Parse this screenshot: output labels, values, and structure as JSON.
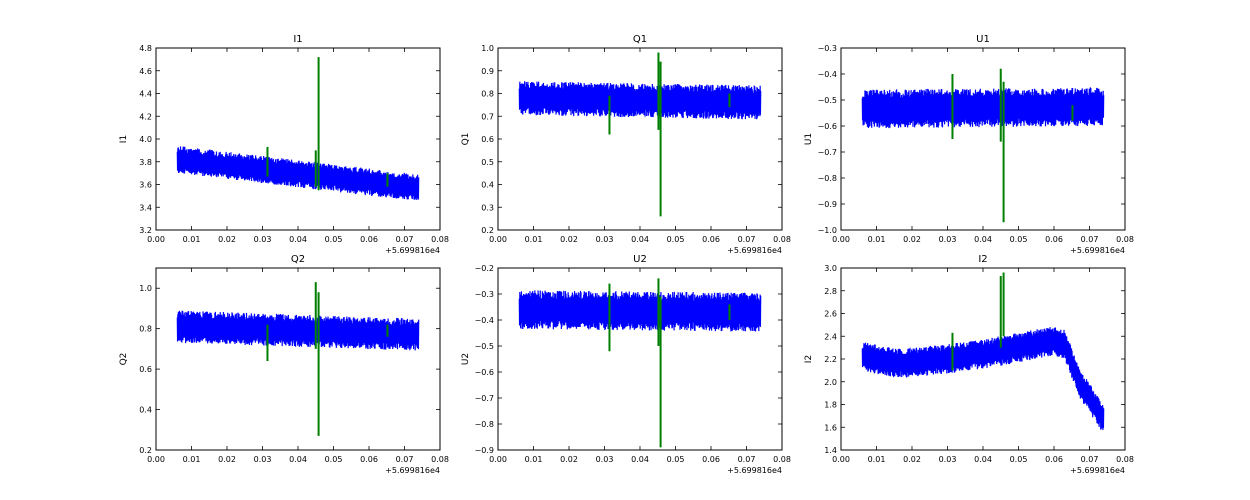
{
  "chart_data": [
    {
      "type": "line",
      "title": "I1",
      "ylabel": "I1",
      "xlim": [
        0.0,
        0.08
      ],
      "ylim": [
        3.2,
        4.8
      ],
      "xticks": [
        "0.00",
        "0.01",
        "0.02",
        "0.03",
        "0.04",
        "0.05",
        "0.06",
        "0.07",
        "0.08"
      ],
      "yticks": [
        "3.2",
        "3.4",
        "3.6",
        "3.8",
        "4.0",
        "4.2",
        "4.4",
        "4.6",
        "4.8"
      ],
      "x_offset_label": "+5.699816e4",
      "grid": false,
      "series": [
        {
          "color": "#0000ff",
          "x_range": [
            0.006,
            0.074
          ],
          "trend": [
            [
              0.006,
              3.82
            ],
            [
              0.074,
              3.57
            ]
          ],
          "band": 0.12
        },
        {
          "color": "#007f00",
          "spikes": [
            [
              0.0314,
              3.67,
              3.93
            ],
            [
              0.045,
              3.58,
              3.9
            ],
            [
              0.0458,
              3.55,
              4.72
            ],
            [
              0.0652,
              3.58,
              3.7
            ]
          ]
        }
      ]
    },
    {
      "type": "line",
      "title": "Q1",
      "ylabel": "Q1",
      "xlim": [
        0.0,
        0.08
      ],
      "ylim": [
        0.2,
        1.0
      ],
      "xticks": [
        "0.00",
        "0.01",
        "0.02",
        "0.03",
        "0.04",
        "0.05",
        "0.06",
        "0.07",
        "0.08"
      ],
      "yticks": [
        "0.2",
        "0.3",
        "0.4",
        "0.5",
        "0.6",
        "0.7",
        "0.8",
        "0.9",
        "1.0"
      ],
      "x_offset_label": "+5.699816e4",
      "grid": false,
      "series": [
        {
          "color": "#0000ff",
          "x_range": [
            0.006,
            0.074
          ],
          "trend": [
            [
              0.006,
              0.78
            ],
            [
              0.074,
              0.76
            ]
          ],
          "band": 0.075
        },
        {
          "color": "#007f00",
          "spikes": [
            [
              0.0314,
              0.62,
              0.79
            ],
            [
              0.0452,
              0.64,
              0.98
            ],
            [
              0.0458,
              0.26,
              0.94
            ],
            [
              0.0652,
              0.74,
              0.8
            ]
          ]
        }
      ]
    },
    {
      "type": "line",
      "title": "U1",
      "ylabel": "U1",
      "xlim": [
        0.0,
        0.08
      ],
      "ylim": [
        -1.0,
        -0.3
      ],
      "xticks": [
        "0.00",
        "0.01",
        "0.02",
        "0.03",
        "0.04",
        "0.05",
        "0.06",
        "0.07",
        "0.08"
      ],
      "yticks": [
        "−1.0",
        "−0.9",
        "−0.8",
        "−0.7",
        "−0.6",
        "−0.5",
        "−0.4",
        "−0.3"
      ],
      "x_offset_label": "+5.699816e4",
      "grid": false,
      "series": [
        {
          "color": "#0000ff",
          "x_range": [
            0.006,
            0.074
          ],
          "trend": [
            [
              0.006,
              -0.535
            ],
            [
              0.074,
              -0.525
            ]
          ],
          "band": 0.075
        },
        {
          "color": "#007f00",
          "spikes": [
            [
              0.0314,
              -0.65,
              -0.4
            ],
            [
              0.045,
              -0.66,
              -0.38
            ],
            [
              0.0458,
              -0.97,
              -0.43
            ],
            [
              0.0652,
              -0.58,
              -0.52
            ]
          ]
        }
      ]
    },
    {
      "type": "line",
      "title": "Q2",
      "ylabel": "Q2",
      "xlim": [
        0.0,
        0.08
      ],
      "ylim": [
        0.2,
        1.1
      ],
      "xticks": [
        "0.00",
        "0.01",
        "0.02",
        "0.03",
        "0.04",
        "0.05",
        "0.06",
        "0.07",
        "0.08"
      ],
      "yticks": [
        "0.2",
        "0.4",
        "0.6",
        "0.8",
        "1.0"
      ],
      "x_offset_label": "+5.699816e4",
      "grid": false,
      "series": [
        {
          "color": "#0000ff",
          "x_range": [
            0.006,
            0.074
          ],
          "trend": [
            [
              0.006,
              0.81
            ],
            [
              0.074,
              0.77
            ]
          ],
          "band": 0.08
        },
        {
          "color": "#007f00",
          "spikes": [
            [
              0.0314,
              0.64,
              0.82
            ],
            [
              0.045,
              0.7,
              1.03
            ],
            [
              0.0458,
              0.27,
              0.98
            ],
            [
              0.0652,
              0.76,
              0.82
            ]
          ]
        }
      ]
    },
    {
      "type": "line",
      "title": "U2",
      "ylabel": "U2",
      "xlim": [
        0.0,
        0.08
      ],
      "ylim": [
        -0.9,
        -0.2
      ],
      "xticks": [
        "0.00",
        "0.01",
        "0.02",
        "0.03",
        "0.04",
        "0.05",
        "0.06",
        "0.07",
        "0.08"
      ],
      "yticks": [
        "−0.9",
        "−0.8",
        "−0.7",
        "−0.6",
        "−0.5",
        "−0.4",
        "−0.3",
        "−0.2"
      ],
      "x_offset_label": "+5.699816e4",
      "grid": false,
      "series": [
        {
          "color": "#0000ff",
          "x_range": [
            0.006,
            0.074
          ],
          "trend": [
            [
              0.006,
              -0.36
            ],
            [
              0.074,
              -0.37
            ]
          ],
          "band": 0.075
        },
        {
          "color": "#007f00",
          "spikes": [
            [
              0.0314,
              -0.52,
              -0.26
            ],
            [
              0.0452,
              -0.5,
              -0.24
            ],
            [
              0.0458,
              -0.89,
              -0.31
            ],
            [
              0.0652,
              -0.4,
              -0.34
            ]
          ]
        }
      ]
    },
    {
      "type": "line",
      "title": "I2",
      "ylabel": "I2",
      "xlim": [
        0.0,
        0.08
      ],
      "ylim": [
        1.4,
        3.0
      ],
      "xticks": [
        "0.00",
        "0.01",
        "0.02",
        "0.03",
        "0.04",
        "0.05",
        "0.06",
        "0.07",
        "0.08"
      ],
      "yticks": [
        "1.4",
        "1.6",
        "1.8",
        "2.0",
        "2.2",
        "2.4",
        "2.6",
        "2.8",
        "3.0"
      ],
      "x_offset_label": "+5.699816e4",
      "grid": false,
      "series": [
        {
          "color": "#0000ff",
          "x_range": [
            0.006,
            0.074
          ],
          "trend": [
            [
              0.006,
              2.22
            ],
            [
              0.016,
              2.16
            ],
            [
              0.03,
              2.2
            ],
            [
              0.045,
              2.27
            ],
            [
              0.06,
              2.36
            ],
            [
              0.063,
              2.33
            ],
            [
              0.067,
              2.0
            ],
            [
              0.074,
              1.67
            ]
          ],
          "band": 0.13
        },
        {
          "color": "#007f00",
          "spikes": [
            [
              0.0314,
              2.1,
              2.43
            ],
            [
              0.045,
              2.3,
              2.93
            ],
            [
              0.0458,
              2.4,
              2.96
            ]
          ]
        }
      ]
    }
  ]
}
